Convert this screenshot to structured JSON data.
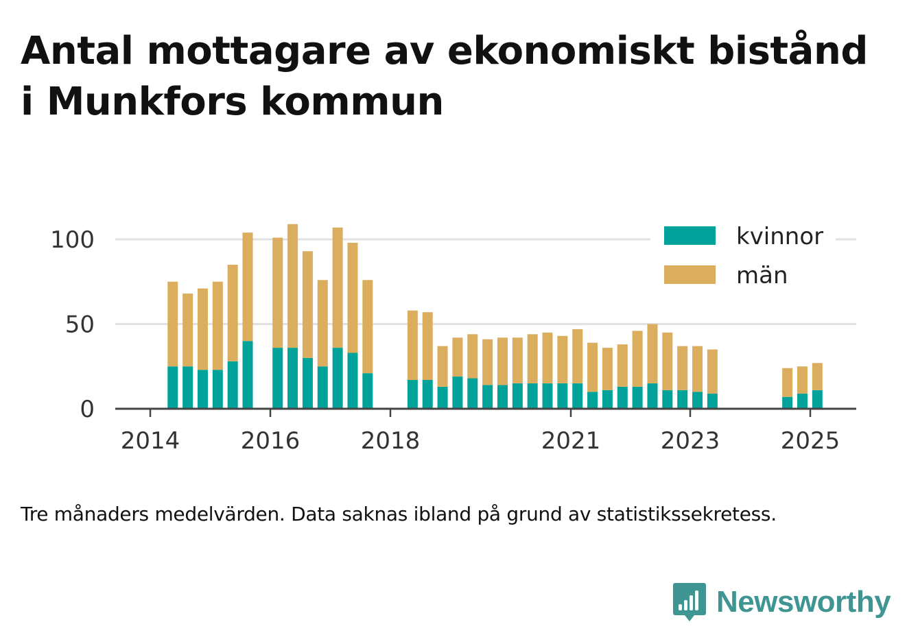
{
  "title": "Antal mottagare av ekonomiskt bistånd i Munkfors kommun",
  "note": "Tre månaders medelvärden. Data saknas ibland på grund av statistikssekretess.",
  "brand": {
    "name": "Newsworthy",
    "logo_icon": "bar-chart-speech-bubble-icon"
  },
  "colors": {
    "kvinnor": "#00a29a",
    "man": "#dbae5f",
    "grid": "#e1e1e1",
    "axis": "#444444",
    "brand": "#3e9591"
  },
  "chart_data": {
    "type": "bar",
    "stacked": true,
    "title": "Antal mottagare av ekonomiskt bistånd i Munkfors kommun",
    "xlabel": "",
    "ylabel": "",
    "ylim": [
      0,
      110
    ],
    "yticks": [
      0,
      50,
      100
    ],
    "xticks": [
      "2014",
      "2016",
      "2018",
      "2021",
      "2023",
      "2025"
    ],
    "grid": true,
    "legend": {
      "placement": "top-right",
      "entries": [
        "kvinnor",
        "män"
      ]
    },
    "categories": [
      "2014 Q2",
      "2014 Q3",
      "2014 Q4",
      "2015 Q1",
      "2015 Q2",
      "2015 Q3",
      "2016 Q1",
      "2016 Q2",
      "2016 Q3",
      "2016 Q4",
      "2017 Q1",
      "2017 Q2",
      "2017 Q3",
      "2018 Q2",
      "2018 Q3",
      "2018 Q4",
      "2019 Q1",
      "2019 Q2",
      "2019 Q3",
      "2019 Q4",
      "2020 Q1",
      "2020 Q2",
      "2020 Q3",
      "2020 Q4",
      "2021 Q1",
      "2021 Q2",
      "2021 Q3",
      "2021 Q4",
      "2022 Q1",
      "2022 Q2",
      "2022 Q3",
      "2022 Q4",
      "2023 Q1",
      "2023 Q2",
      "2024 Q3",
      "2024 Q4",
      "2025 Q1"
    ],
    "series": [
      {
        "name": "kvinnor",
        "values": [
          25,
          25,
          23,
          23,
          28,
          40,
          36,
          36,
          30,
          25,
          36,
          33,
          21,
          17,
          17,
          13,
          19,
          18,
          14,
          14,
          15,
          15,
          15,
          15,
          15,
          10,
          11,
          13,
          13,
          15,
          11,
          11,
          10,
          9,
          7,
          9,
          11
        ]
      },
      {
        "name": "män",
        "values": [
          50,
          43,
          48,
          52,
          57,
          64,
          65,
          73,
          63,
          51,
          71,
          65,
          55,
          41,
          40,
          24,
          23,
          26,
          27,
          28,
          27,
          29,
          30,
          28,
          32,
          29,
          25,
          25,
          33,
          35,
          34,
          26,
          27,
          26,
          17,
          16,
          16
        ]
      }
    ]
  }
}
